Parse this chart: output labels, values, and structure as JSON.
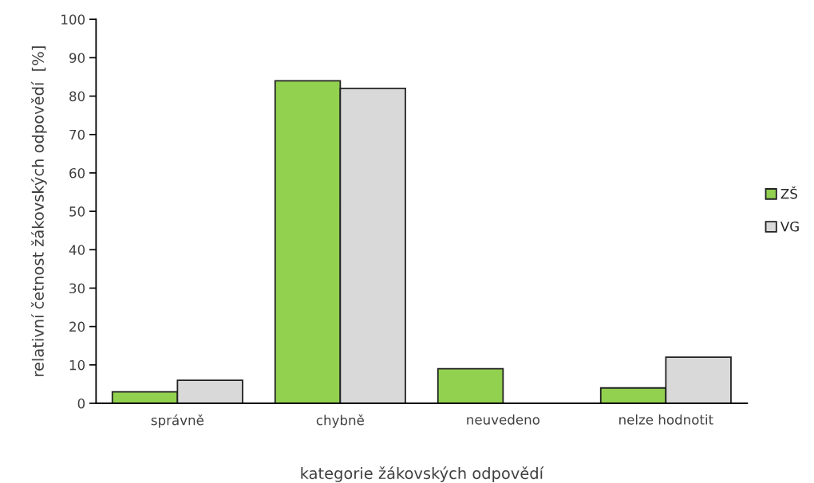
{
  "chart_data": {
    "type": "bar",
    "xlabel": "kategorie žákovských odpovědí",
    "ylabel": "relativní četnost žákovských odpovědí  [%]",
    "categories": [
      "správně",
      "chybně",
      "neuvedeno",
      "nelze hodnotit"
    ],
    "series": [
      {
        "name": "ZŠ",
        "color": "#92d050",
        "values": [
          3,
          84,
          9,
          4
        ]
      },
      {
        "name": "VG",
        "color": "#d9d9d9",
        "values": [
          6,
          82,
          null,
          12
        ]
      }
    ],
    "ylim": [
      0,
      100
    ],
    "yticks": [
      0,
      10,
      20,
      30,
      40,
      50,
      60,
      70,
      80,
      90,
      100
    ],
    "grid": false,
    "legend": "right"
  }
}
